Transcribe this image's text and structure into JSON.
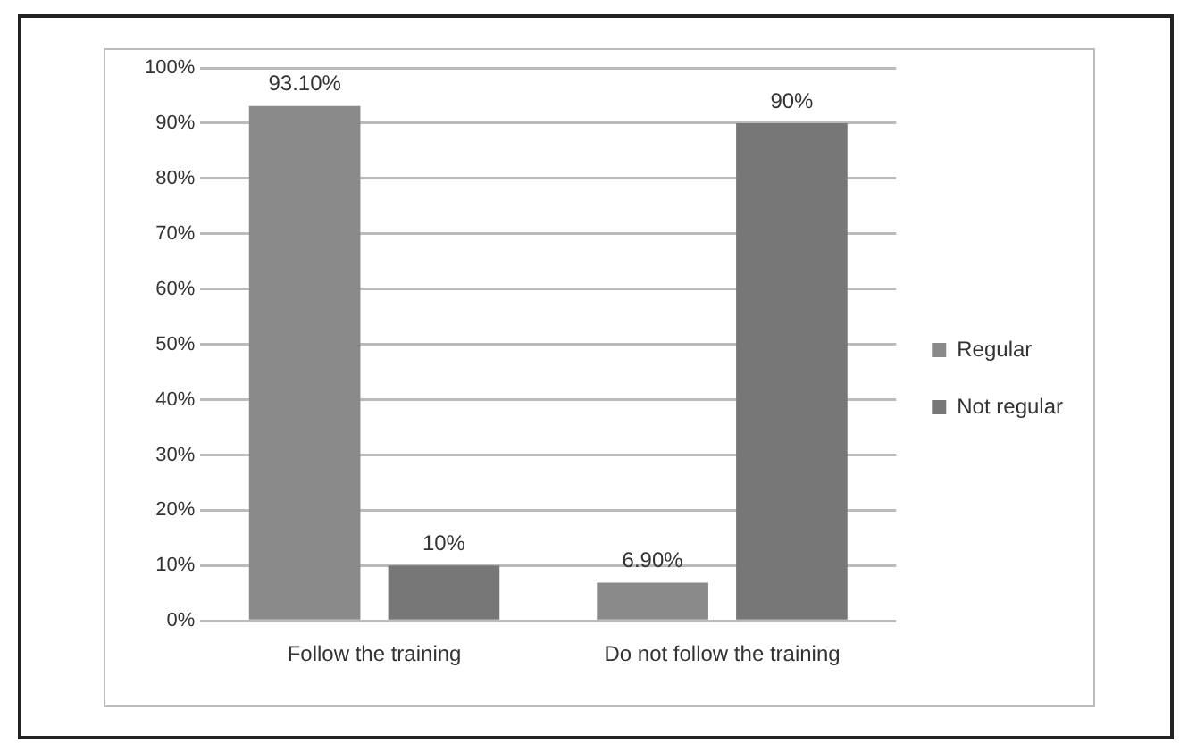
{
  "chart_data": {
    "type": "bar",
    "categories": [
      "Follow the training",
      "Do not follow the training"
    ],
    "series": [
      {
        "name": "Regular",
        "color": "#8a8a8a",
        "values": [
          93.1,
          6.9
        ],
        "value_labels": [
          "93.10%",
          "6.90%"
        ]
      },
      {
        "name": "Not regular",
        "color": "#777777",
        "values": [
          10,
          90
        ],
        "value_labels": [
          "10%",
          "90%"
        ]
      }
    ],
    "ylim": [
      0,
      100
    ],
    "yticks": [
      {
        "value": 0,
        "label": "0%"
      },
      {
        "value": 10,
        "label": "10%"
      },
      {
        "value": 20,
        "label": "20%"
      },
      {
        "value": 30,
        "label": "30%"
      },
      {
        "value": 40,
        "label": "40%"
      },
      {
        "value": 50,
        "label": "50%"
      },
      {
        "value": 60,
        "label": "60%"
      },
      {
        "value": 70,
        "label": "70%"
      },
      {
        "value": 80,
        "label": "80%"
      },
      {
        "value": 90,
        "label": "90%"
      },
      {
        "value": 100,
        "label": "100%"
      }
    ],
    "grid": "y",
    "legend": "right"
  }
}
